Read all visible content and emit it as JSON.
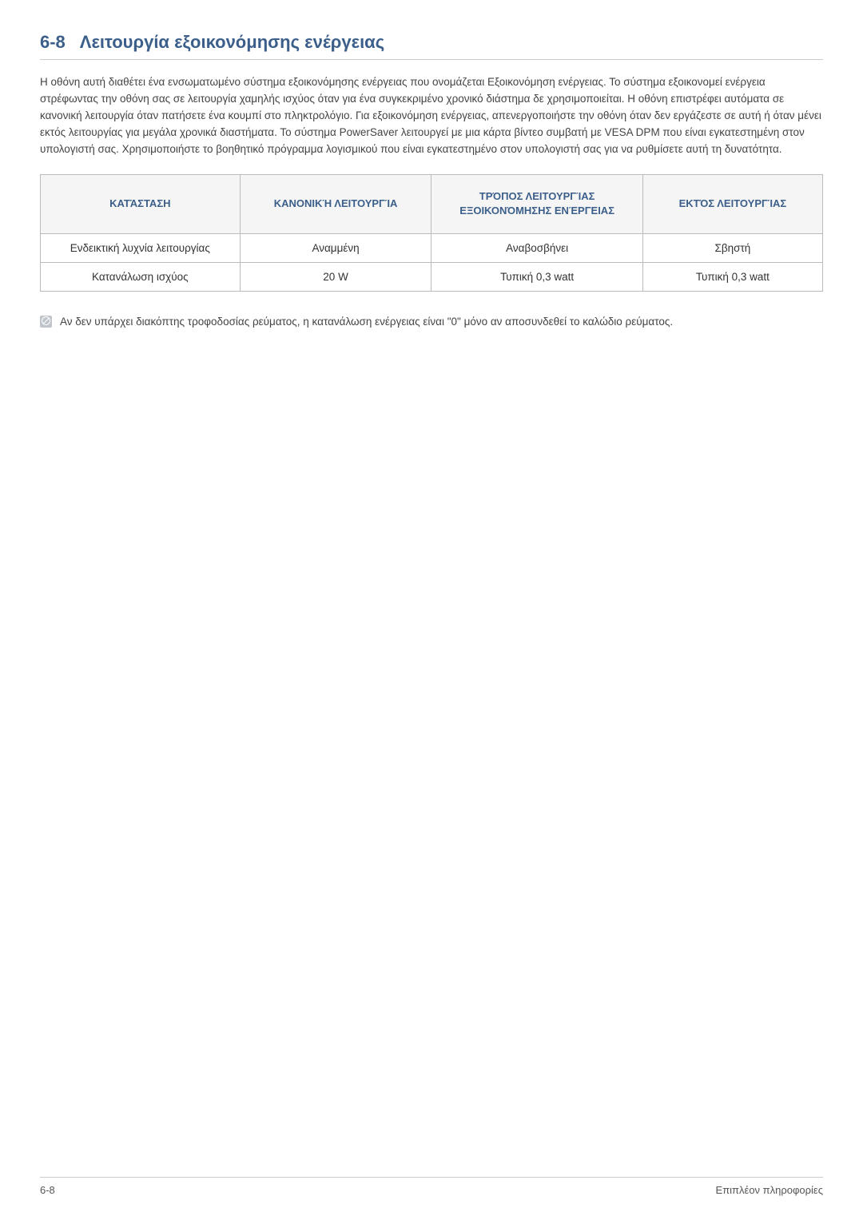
{
  "heading": {
    "number": "6-8",
    "title": "Λειτουργία εξοικονόμησης ενέργειας"
  },
  "paragraph": "Η οθόνη αυτή διαθέτει ένα ενσωματωμένο σύστημα εξοικονόμησης ενέργειας που ονομάζεται Εξοικονόμηση ενέργειας. Το σύστημα εξοικονομεί ενέργεια στρέφωντας την οθόνη σας σε λειτουργία χαμηλής ισχύος όταν για ένα συγκεκριμένο χρονικό διάστημα δε χρησιμοποιείται. Η οθόνη επιστρέφει αυτόματα σε κανονική λειτουργία όταν πατήσετε ένα κουμπί στο πληκτρολόγιο. Για εξοικονόμηση ενέργειας, απενεργοποιήστε την οθόνη όταν δεν εργάζεστε σε αυτή ή όταν μένει εκτός λειτουργίας για μεγάλα χρονικά διαστήματα. Το σύστημα PowerSaver λειτουργεί με μια κάρτα βίντεο συμβατή με VESA DPM που είναι εγκατεστημένη στον υπολογιστή σας. Χρησιμοποιήστε το βοηθητικό πρόγραμμα λογισμικού που είναι εγκατεστημένο στον υπολογιστή σας για να ρυθμίσετε αυτή τη δυνατότητα.",
  "table": {
    "headers": {
      "c0": "ΚΑΤΆΣΤΑΣΗ",
      "c1": "ΚΑΝΟΝΙΚΉ ΛΕΙΤΟΥΡΓΊΑ",
      "c2": "ΤΡΌΠΟΣ ΛΕΙΤΟΥΡΓΊΑΣ ΕΞΟΙΚΟΝΌΜΗΣΗΣ ΕΝΈΡΓΕΙΑΣ",
      "c3": "ΕΚΤΌΣ ΛΕΙΤΟΥΡΓΊΑΣ"
    },
    "col_widths": [
      "25.5%",
      "24.5%",
      "27%",
      "23%"
    ],
    "header_bg": "#f5f5f5",
    "header_color": "#3b5f8a",
    "border_color": "#bbbbbb",
    "rows": [
      {
        "c0": "Ενδεικτική λυχνία λειτουργίας",
        "c1": "Αναμμένη",
        "c2": "Αναβοσβήνει",
        "c3": "Σβηστή"
      },
      {
        "c0": "Κατανάλωση ισχύος",
        "c1": "20 W",
        "c2": "Τυπική 0,3 watt",
        "c3": "Τυπική 0,3 watt"
      }
    ]
  },
  "note": "Αν δεν υπάρχει διακόπτης τροφοδοσίας ρεύματος, η κατανάλωση ενέργειας είναι \"0\" μόνο αν αποσυνδεθεί το καλώδιο ρεύματος.",
  "footer": {
    "left": "6-8",
    "right": "Επιπλέον πληροφορίες"
  },
  "colors": {
    "heading": "#3b5f8a",
    "text": "#444444",
    "rule": "#cccccc",
    "note_icon_bg": "#bfc5cb"
  },
  "fonts": {
    "heading_pt": 22,
    "body_pt": 13.5,
    "th_pt": 13,
    "footer_pt": 13
  }
}
